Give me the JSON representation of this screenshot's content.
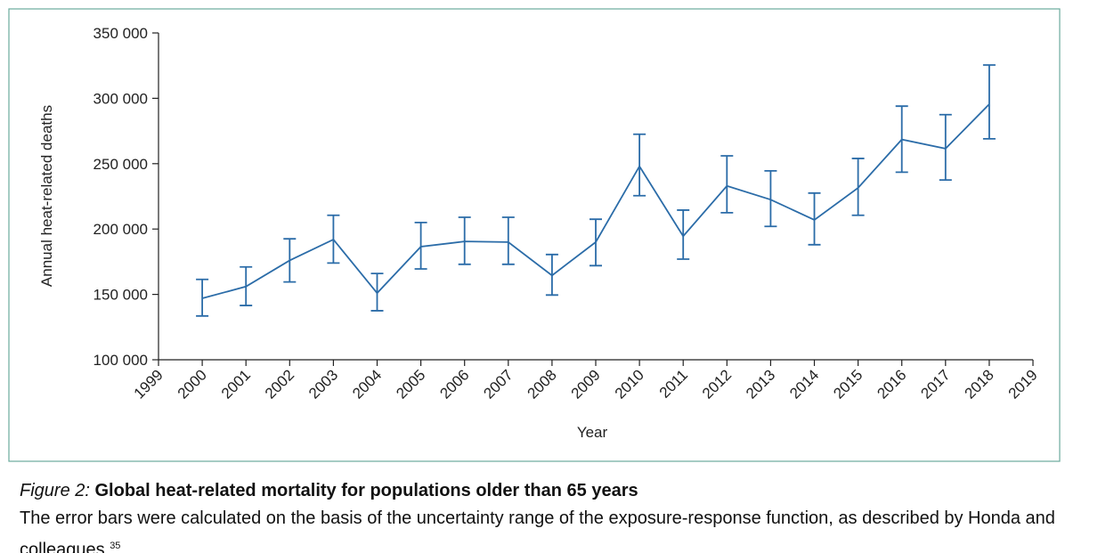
{
  "chart_data": {
    "type": "line",
    "x_label": "Year",
    "y_label": "Annual heat-related deaths",
    "x": [
      2000,
      2001,
      2002,
      2003,
      2004,
      2005,
      2006,
      2007,
      2008,
      2009,
      2010,
      2011,
      2012,
      2013,
      2014,
      2015,
      2016,
      2017,
      2018
    ],
    "series": [
      {
        "color": "#2b6ca8",
        "values": [
          147000,
          156000,
          176000,
          192000,
          151000,
          186500,
          190500,
          190000,
          164500,
          190000,
          248000,
          194500,
          233000,
          222500,
          207000,
          231500,
          268500,
          261500,
          295500
        ],
        "lower": [
          133500,
          141500,
          159500,
          174000,
          137500,
          169500,
          173000,
          173000,
          149500,
          172000,
          225500,
          177000,
          212500,
          202000,
          188000,
          210500,
          243500,
          237500,
          269000
        ],
        "upper": [
          161500,
          171000,
          192500,
          210500,
          166000,
          205000,
          209000,
          209000,
          180500,
          207500,
          272500,
          214500,
          256000,
          244500,
          227500,
          254000,
          294000,
          287500,
          325500
        ]
      }
    ],
    "xlim": [
      1999,
      2019
    ],
    "xticks": [
      1999,
      2000,
      2001,
      2002,
      2003,
      2004,
      2005,
      2006,
      2007,
      2008,
      2009,
      2010,
      2011,
      2012,
      2013,
      2014,
      2015,
      2016,
      2017,
      2018,
      2019
    ],
    "ylim": [
      100000,
      350000
    ],
    "yticks": [
      {
        "value": 100000,
        "label": "100 000"
      },
      {
        "value": 150000,
        "label": "150 000"
      },
      {
        "value": 200000,
        "label": "200 000"
      },
      {
        "value": 250000,
        "label": "250 000"
      },
      {
        "value": 300000,
        "label": "300 000"
      },
      {
        "value": 350000,
        "label": "350 000"
      }
    ],
    "grid": false
  },
  "caption": {
    "figure_label": "Figure 2:",
    "title": "Global heat-related mortality for populations older than 65 years",
    "text": "The error bars were calculated on the basis of the uncertainty range of the exposure-response function, as described by Honda and colleagues.",
    "reference": "35"
  }
}
